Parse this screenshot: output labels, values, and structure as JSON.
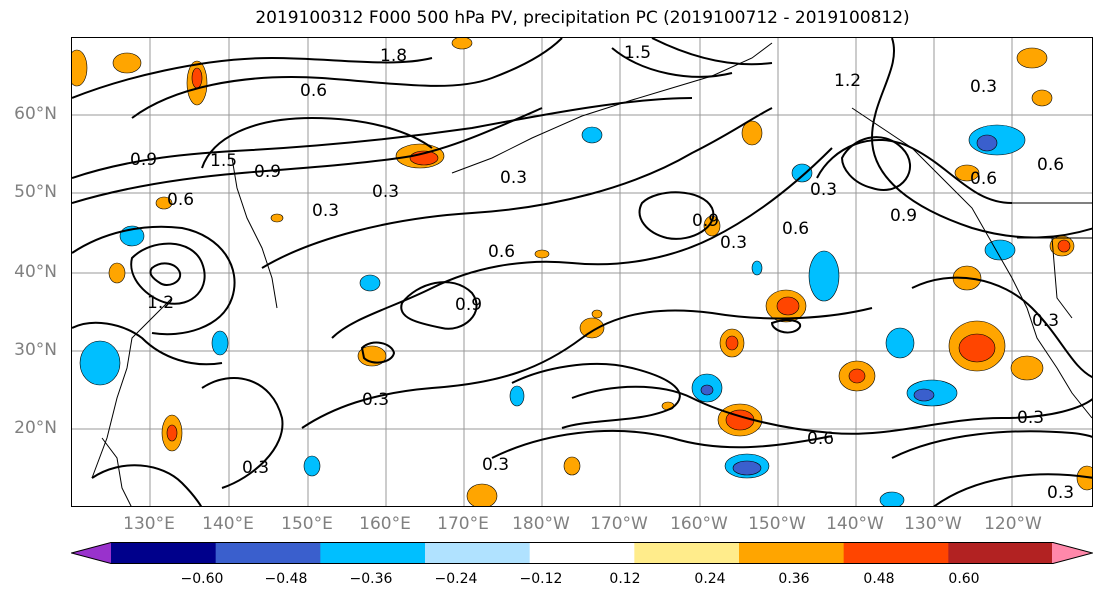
{
  "title": "2019100312 F000 500 hPa PV, precipitation PC (2019100712 - 2019100812)",
  "lat_labels": [
    "60°N",
    "50°N",
    "40°N",
    "30°N",
    "20°N"
  ],
  "lon_labels": [
    "130°E",
    "140°E",
    "150°E",
    "160°E",
    "170°E",
    "180°W",
    "170°W",
    "160°W",
    "150°W",
    "140°W",
    "130°W",
    "120°W"
  ],
  "contour_labels": [
    "1.8",
    "1.5",
    "0.6",
    "1.2",
    "0.3",
    "1.5",
    "0.9",
    "0.9",
    "0.6",
    "0.3",
    "0.3",
    "0.3",
    "0.6",
    "0.9",
    "0.3",
    "0.6",
    "0.3",
    "0.6",
    "0.9",
    "1.2",
    "0.9",
    "0.3",
    "0.6",
    "0.3",
    "0.3",
    "0.3",
    "0.6",
    "0.3",
    "0.3"
  ],
  "colorbar": {
    "ticks": [
      "−0.60",
      "−0.48",
      "−0.36",
      "−0.24",
      "−0.12",
      "0.12",
      "0.24",
      "0.36",
      "0.48",
      "0.60"
    ],
    "colors": [
      "#9932cc",
      "#00008b",
      "#3a5fcd",
      "#00bfff",
      "#b0e2ff",
      "#ffffff",
      "#ffec8b",
      "#ffa500",
      "#ff4500",
      "#b22222",
      "#ff88aa"
    ]
  }
}
